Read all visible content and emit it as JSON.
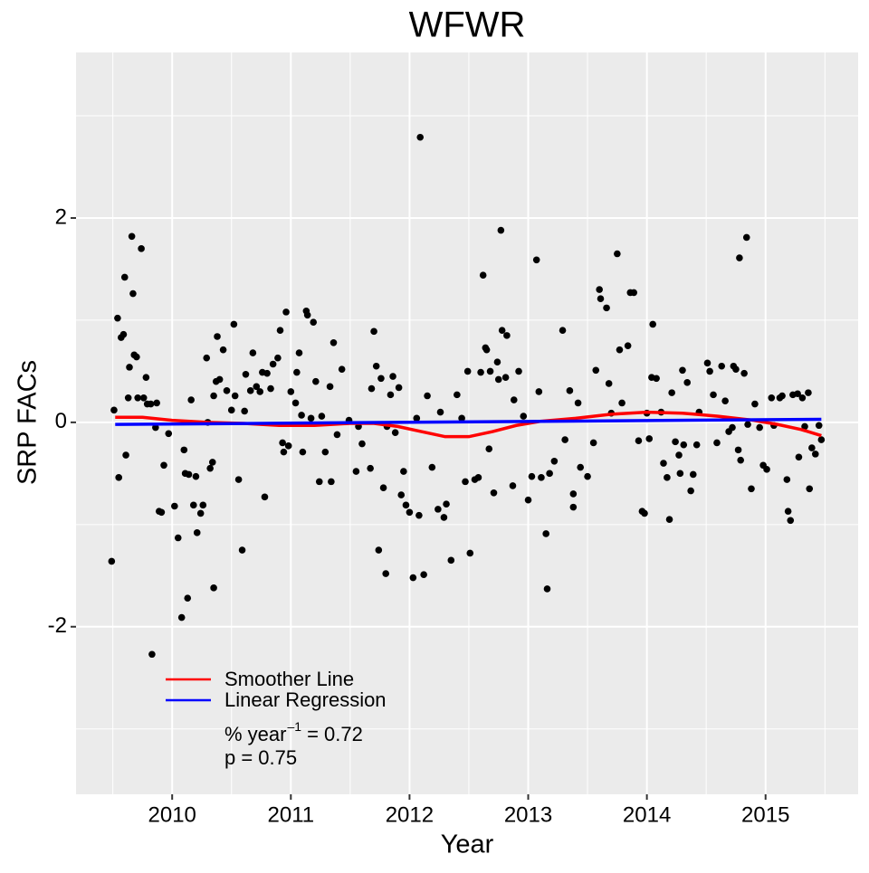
{
  "chart_data": {
    "type": "scatter",
    "title": "WFWR",
    "x_label": "Year",
    "y_label": "SRP FACs",
    "xlim": [
      2009.19,
      2015.78
    ],
    "ylim": [
      -3.64,
      3.62
    ],
    "xticks": [
      2010,
      2011,
      2012,
      2013,
      2014,
      2015
    ],
    "yticks": [
      -2,
      0,
      2
    ],
    "grid": true,
    "legend": "bottom-left",
    "points": {
      "color": "#000000",
      "x": [
        2009.49,
        2009.51,
        2009.54,
        2009.55,
        2009.57,
        2009.59,
        2009.6,
        2009.61,
        2009.63,
        2009.64,
        2009.66,
        2009.67,
        2009.68,
        2009.7,
        2009.71,
        2009.74,
        2009.76,
        2009.78,
        2009.79,
        2009.82,
        2009.83,
        2009.86,
        2009.87,
        2009.89,
        2009.91,
        2009.93,
        2009.97,
        2010.02,
        2010.05,
        2010.08,
        2010.1,
        2010.11,
        2010.13,
        2010.14,
        2010.16,
        2010.18,
        2010.2,
        2010.21,
        2010.24,
        2010.26,
        2010.29,
        2010.3,
        2010.32,
        2010.34,
        2010.35,
        2010.35,
        2010.37,
        2010.38,
        2010.4,
        2010.43,
        2010.46,
        2010.5,
        2010.52,
        2010.53,
        2010.56,
        2010.59,
        2010.61,
        2010.62,
        2010.66,
        2010.68,
        2010.71,
        2010.74,
        2010.76,
        2010.78,
        2010.8,
        2010.83,
        2010.85,
        2010.89,
        2010.91,
        2010.93,
        2010.94,
        2010.96,
        2010.98,
        2011.0,
        2011.04,
        2011.05,
        2011.07,
        2011.09,
        2011.1,
        2011.13,
        2011.14,
        2011.17,
        2011.19,
        2011.21,
        2011.24,
        2011.26,
        2011.29,
        2011.33,
        2011.34,
        2011.36,
        2011.39,
        2011.43,
        2011.49,
        2011.55,
        2011.57,
        2011.6,
        2011.67,
        2011.68,
        2011.7,
        2011.72,
        2011.74,
        2011.76,
        2011.78,
        2011.8,
        2011.81,
        2011.84,
        2011.86,
        2011.88,
        2011.91,
        2011.93,
        2011.95,
        2011.97,
        2012.0,
        2012.03,
        2012.06,
        2012.08,
        2012.09,
        2012.12,
        2012.15,
        2012.19,
        2012.24,
        2012.26,
        2012.29,
        2012.31,
        2012.35,
        2012.4,
        2012.44,
        2012.47,
        2012.49,
        2012.51,
        2012.55,
        2012.58,
        2012.6,
        2012.62,
        2012.64,
        2012.65,
        2012.67,
        2012.68,
        2012.71,
        2012.74,
        2012.75,
        2012.77,
        2012.78,
        2012.81,
        2012.82,
        2012.87,
        2012.88,
        2012.92,
        2012.96,
        2013.0,
        2013.03,
        2013.07,
        2013.09,
        2013.11,
        2013.15,
        2013.16,
        2013.18,
        2013.22,
        2013.29,
        2013.31,
        2013.35,
        2013.38,
        2013.38,
        2013.42,
        2013.44,
        2013.5,
        2013.55,
        2013.57,
        2013.6,
        2013.61,
        2013.66,
        2013.68,
        2013.7,
        2013.75,
        2013.77,
        2013.79,
        2013.84,
        2013.86,
        2013.89,
        2013.93,
        2013.96,
        2013.98,
        2014.0,
        2014.02,
        2014.04,
        2014.05,
        2014.08,
        2014.12,
        2014.14,
        2014.17,
        2014.19,
        2014.21,
        2014.24,
        2014.27,
        2014.28,
        2014.3,
        2014.31,
        2014.34,
        2014.37,
        2014.39,
        2014.42,
        2014.44,
        2014.51,
        2014.53,
        2014.56,
        2014.59,
        2014.63,
        2014.66,
        2014.69,
        2014.72,
        2014.73,
        2014.75,
        2014.77,
        2014.78,
        2014.79,
        2014.82,
        2014.84,
        2014.85,
        2014.88,
        2014.91,
        2014.95,
        2014.98,
        2015.01,
        2015.05,
        2015.07,
        2015.12,
        2015.14,
        2015.18,
        2015.19,
        2015.21,
        2015.23,
        2015.27,
        2015.28,
        2015.31,
        2015.33,
        2015.36,
        2015.37,
        2015.39,
        2015.42,
        2015.45,
        2015.47
      ],
      "values": [
        -1.36,
        0.12,
        1.02,
        -0.54,
        0.83,
        0.86,
        1.42,
        -0.32,
        0.24,
        0.54,
        1.82,
        1.26,
        0.66,
        0.64,
        0.24,
        1.7,
        0.24,
        0.44,
        0.18,
        0.18,
        -2.27,
        -0.05,
        0.19,
        -0.87,
        -0.88,
        -0.42,
        -0.11,
        -0.82,
        -1.13,
        -1.91,
        -0.27,
        -0.5,
        -1.72,
        -0.51,
        0.22,
        -0.81,
        -0.53,
        -1.08,
        -0.89,
        -0.81,
        0.63,
        0.0,
        -0.45,
        -0.39,
        -1.62,
        0.26,
        0.4,
        0.84,
        0.42,
        0.71,
        0.31,
        0.12,
        0.96,
        0.26,
        -0.56,
        -1.25,
        0.11,
        0.47,
        0.31,
        0.68,
        0.35,
        0.3,
        0.49,
        -0.73,
        0.48,
        0.33,
        0.57,
        0.63,
        0.9,
        -0.2,
        -0.29,
        1.08,
        -0.23,
        0.3,
        0.19,
        0.49,
        0.68,
        0.07,
        -0.29,
        1.09,
        1.05,
        0.04,
        0.98,
        0.4,
        -0.58,
        0.06,
        -0.29,
        0.35,
        -0.58,
        0.78,
        -0.12,
        0.52,
        0.02,
        -0.48,
        -0.04,
        -0.21,
        -0.45,
        0.33,
        0.89,
        0.55,
        -1.25,
        0.43,
        -0.64,
        -1.48,
        -0.04,
        0.27,
        0.45,
        -0.1,
        0.34,
        -0.71,
        -0.48,
        -0.81,
        -0.88,
        -1.52,
        0.04,
        -0.91,
        2.79,
        -1.49,
        0.26,
        -0.44,
        -0.85,
        0.1,
        -0.93,
        -0.8,
        -1.35,
        0.27,
        0.04,
        -0.58,
        0.5,
        -1.28,
        -0.56,
        -0.54,
        0.49,
        1.44,
        0.73,
        0.71,
        -0.26,
        0.5,
        -0.69,
        0.59,
        0.42,
        1.88,
        0.9,
        0.44,
        0.85,
        -0.62,
        0.22,
        0.5,
        0.06,
        -0.76,
        -0.53,
        1.59,
        0.3,
        -0.54,
        -1.09,
        -1.63,
        -0.5,
        -0.38,
        0.9,
        -0.17,
        0.31,
        -0.7,
        -0.83,
        0.19,
        -0.44,
        -0.53,
        -0.2,
        0.51,
        1.3,
        1.21,
        1.12,
        0.38,
        0.09,
        1.65,
        0.71,
        0.19,
        0.75,
        1.27,
        1.27,
        -0.18,
        -0.87,
        -0.89,
        0.09,
        -0.16,
        0.44,
        0.96,
        0.43,
        0.1,
        -0.4,
        -0.54,
        -0.95,
        0.29,
        -0.19,
        -0.32,
        -0.5,
        0.51,
        -0.22,
        0.39,
        -0.67,
        -0.51,
        -0.22,
        0.1,
        0.58,
        0.5,
        0.27,
        -0.2,
        0.55,
        0.21,
        -0.09,
        -0.05,
        0.55,
        0.52,
        -0.27,
        1.61,
        -0.37,
        0.48,
        1.81,
        -0.02,
        -0.65,
        0.18,
        -0.05,
        -0.42,
        -0.46,
        0.24,
        -0.03,
        0.24,
        0.26,
        -0.56,
        -0.87,
        -0.96,
        0.27,
        0.28,
        -0.34,
        0.24,
        -0.04,
        0.29,
        -0.65,
        -0.25,
        -0.31,
        -0.03,
        -0.17
      ]
    },
    "series": [
      {
        "name": "Smoother Line",
        "color": "#ff0000",
        "x": [
          2009.52,
          2009.75,
          2010.0,
          2010.3,
          2010.6,
          2010.9,
          2011.2,
          2011.5,
          2011.7,
          2011.9,
          2012.1,
          2012.3,
          2012.5,
          2012.7,
          2012.9,
          2013.1,
          2013.4,
          2013.7,
          2014.0,
          2014.3,
          2014.6,
          2014.9,
          2015.1,
          2015.3,
          2015.47
        ],
        "values": [
          0.05,
          0.05,
          0.02,
          0.0,
          -0.01,
          -0.03,
          -0.03,
          -0.01,
          -0.01,
          -0.04,
          -0.09,
          -0.14,
          -0.14,
          -0.09,
          -0.03,
          0.01,
          0.04,
          0.08,
          0.1,
          0.09,
          0.06,
          0.02,
          -0.02,
          -0.07,
          -0.13
        ]
      },
      {
        "name": "Linear Regression",
        "color": "#0000ff",
        "x": [
          2009.52,
          2015.47
        ],
        "values": [
          -0.02,
          0.03
        ]
      }
    ],
    "annotations": [
      [
        "% year",
        "–1",
        "= 0.72"
      ],
      [
        "p = 0.75"
      ]
    ]
  }
}
